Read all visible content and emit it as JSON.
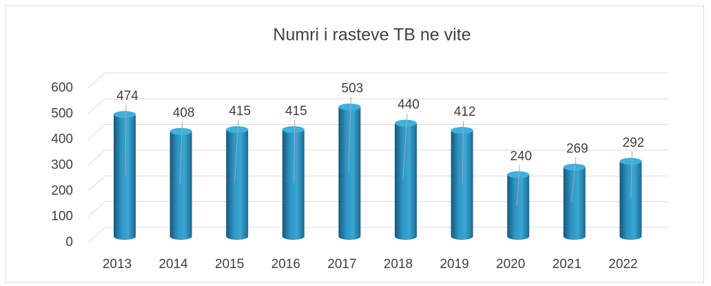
{
  "chart_data": {
    "type": "bar",
    "title": "Numri i rasteve TB ne vite",
    "categories": [
      "2013",
      "2014",
      "2015",
      "2016",
      "2017",
      "2018",
      "2019",
      "2020",
      "2021",
      "2022"
    ],
    "values": [
      474,
      408,
      415,
      415,
      503,
      440,
      412,
      240,
      269,
      292
    ],
    "color": "#2a8bb8",
    "ylim": [
      0,
      600
    ],
    "yticks": [
      0,
      100,
      200,
      300,
      400,
      500,
      600
    ],
    "grid": true
  }
}
